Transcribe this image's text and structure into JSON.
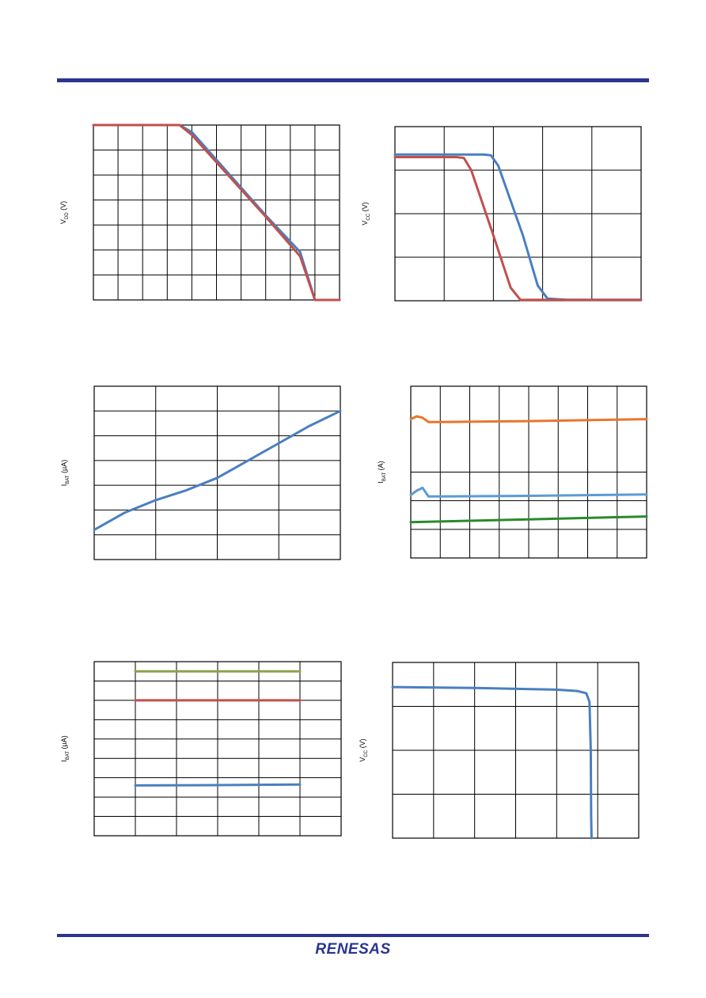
{
  "colors": {
    "rule": "#2b3590",
    "logo": "#2b3590",
    "blue": "#4a7fc1",
    "red": "#c0504d",
    "orange": "#e8762d",
    "lightblue": "#5b9bd5",
    "green": "#2a8a2a",
    "olive": "#8ea14a"
  },
  "logo_text": "RENESAS",
  "chart_data": [
    {
      "id": "vdd",
      "type": "line",
      "ylabel": {
        "main": "V",
        "sub": "DD",
        "rest": " (V)"
      },
      "xlim": [
        0,
        10
      ],
      "ylim": [
        0,
        6.2
      ],
      "vgrid": 10,
      "hgrid": 7,
      "series": [
        {
          "color": "#4a7fc1",
          "x": [
            0,
            3.5,
            4,
            7,
            8.4,
            9,
            10
          ],
          "y": [
            6.2,
            6.2,
            5.95,
            3.0,
            1.7,
            0,
            0
          ]
        },
        {
          "color": "#c0504d",
          "x": [
            0,
            3.5,
            4,
            7,
            8.4,
            9,
            10
          ],
          "y": [
            6.2,
            6.2,
            5.85,
            2.95,
            1.55,
            0,
            0
          ]
        }
      ]
    },
    {
      "id": "vcc",
      "type": "line",
      "ylabel": {
        "main": "V",
        "sub": "CC",
        "rest": " (V)"
      },
      "xlim": [
        0,
        5
      ],
      "ylim": [
        0,
        4
      ],
      "vgrid": 5,
      "hgrid": 4,
      "series": [
        {
          "color": "#4a7fc1",
          "x": [
            0,
            1.8,
            1.95,
            2.1,
            2.6,
            2.9,
            3.1,
            3.5,
            5
          ],
          "y": [
            3.36,
            3.36,
            3.34,
            3.1,
            1.5,
            0.35,
            0.05,
            0.02,
            0.02
          ]
        },
        {
          "color": "#c0504d",
          "x": [
            0,
            1.25,
            1.4,
            1.55,
            2.0,
            2.35,
            2.55,
            3,
            5
          ],
          "y": [
            3.3,
            3.3,
            3.28,
            3.0,
            1.5,
            0.3,
            0.02,
            0.02,
            0.02
          ]
        }
      ]
    },
    {
      "id": "ibat1",
      "type": "line",
      "ylabel": {
        "main": "I",
        "sub": "BAT",
        "rest": " (µA)"
      },
      "xlim": [
        0,
        4
      ],
      "ylim": [
        0,
        7
      ],
      "vgrid": 4,
      "hgrid": 7,
      "series": [
        {
          "color": "#4a7fc1",
          "x": [
            0,
            0.5,
            1,
            1.5,
            2,
            2.5,
            3,
            3.5,
            4
          ],
          "y": [
            1.2,
            1.9,
            2.4,
            2.8,
            3.3,
            4.0,
            4.7,
            5.4,
            6.0
          ]
        }
      ]
    },
    {
      "id": "ibat2",
      "type": "line",
      "ylabel": {
        "main": "I",
        "sub": "BAT",
        "rest": " (A)"
      },
      "xlim": [
        0,
        8
      ],
      "ylim": [
        0,
        6
      ],
      "vgrid": 8,
      "hgrid": [
        1,
        2,
        3
      ],
      "series": [
        {
          "color": "#e8762d",
          "x": [
            0,
            0.2,
            0.4,
            0.6,
            1,
            4,
            8
          ],
          "y": [
            4.85,
            4.95,
            4.9,
            4.75,
            4.75,
            4.78,
            4.85
          ]
        },
        {
          "color": "#5b9bd5",
          "x": [
            0,
            0.2,
            0.4,
            0.6,
            1,
            4,
            8
          ],
          "y": [
            2.2,
            2.35,
            2.45,
            2.15,
            2.15,
            2.17,
            2.22
          ]
        },
        {
          "color": "#2a8a2a",
          "x": [
            0,
            2,
            4,
            6,
            8
          ],
          "y": [
            1.25,
            1.3,
            1.35,
            1.4,
            1.45
          ]
        }
      ]
    },
    {
      "id": "ibat3",
      "type": "line",
      "ylabel": {
        "main": "I",
        "sub": "BAT",
        "rest": " (µA)"
      },
      "xlim": [
        0,
        6
      ],
      "ylim": [
        0,
        9
      ],
      "vgrid": 6,
      "hgrid": 9,
      "series": [
        {
          "color": "#8ea14a",
          "x": [
            1,
            5
          ],
          "y": [
            8.5,
            8.5
          ]
        },
        {
          "color": "#c0504d",
          "x": [
            1,
            5
          ],
          "y": [
            7.0,
            7.0
          ]
        },
        {
          "color": "#4a7fc1",
          "x": [
            1,
            3,
            5
          ],
          "y": [
            2.6,
            2.62,
            2.65
          ]
        }
      ]
    },
    {
      "id": "vcc2",
      "type": "line",
      "ylabel": {
        "main": "V",
        "sub": "CC",
        "rest": " (V)"
      },
      "xlim": [
        0,
        6
      ],
      "ylim": [
        0,
        4
      ],
      "vgrid": 6,
      "hgrid": 4,
      "series": [
        {
          "color": "#4a7fc1",
          "x": [
            0,
            2,
            4,
            4.5,
            4.72,
            4.8,
            4.83,
            4.84,
            4.85
          ],
          "y": [
            3.44,
            3.42,
            3.38,
            3.35,
            3.3,
            3.1,
            2.0,
            0.5,
            0
          ]
        }
      ]
    }
  ]
}
